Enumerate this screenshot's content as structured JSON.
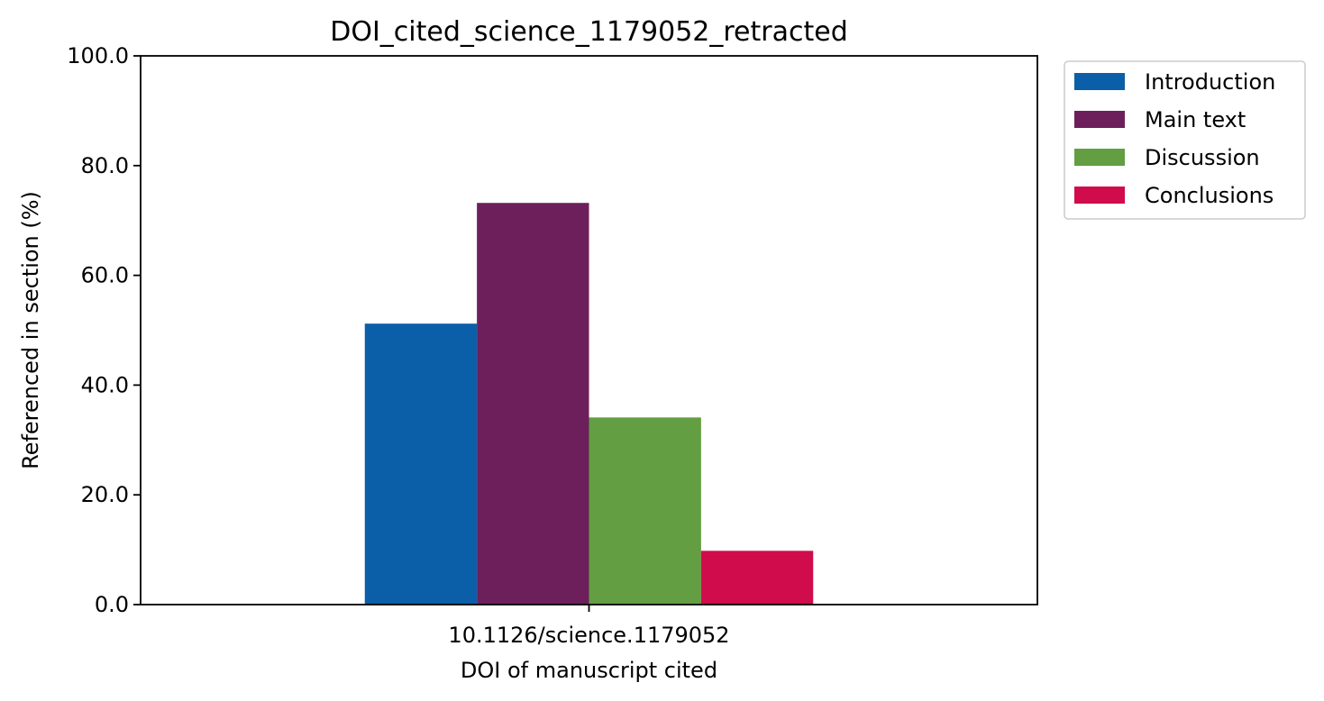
{
  "chart_data": {
    "type": "bar",
    "title": "DOI_cited_science_1179052_retracted",
    "xlabel": "DOI of manuscript cited",
    "ylabel": "Referenced in section (%)",
    "categories": [
      "10.1126/science.1179052"
    ],
    "series": [
      {
        "name": "Introduction",
        "values": [
          51.2
        ],
        "color": "#0b5fa8"
      },
      {
        "name": "Main text",
        "values": [
          73.2
        ],
        "color": "#6d1f5c"
      },
      {
        "name": "Discussion",
        "values": [
          34.1
        ],
        "color": "#639e42"
      },
      {
        "name": "Conclusions",
        "values": [
          9.8
        ],
        "color": "#d00c4c"
      }
    ],
    "ylim": [
      0,
      100
    ],
    "yticks": [
      {
        "value": 0,
        "label": "0.0"
      },
      {
        "value": 20,
        "label": "20.0"
      },
      {
        "value": 40,
        "label": "40.0"
      },
      {
        "value": 60,
        "label": "60.0"
      },
      {
        "value": 80,
        "label": "80.0"
      },
      {
        "value": 100,
        "label": "100.0"
      }
    ],
    "grid": false,
    "legend_position": "outside-top-right"
  }
}
